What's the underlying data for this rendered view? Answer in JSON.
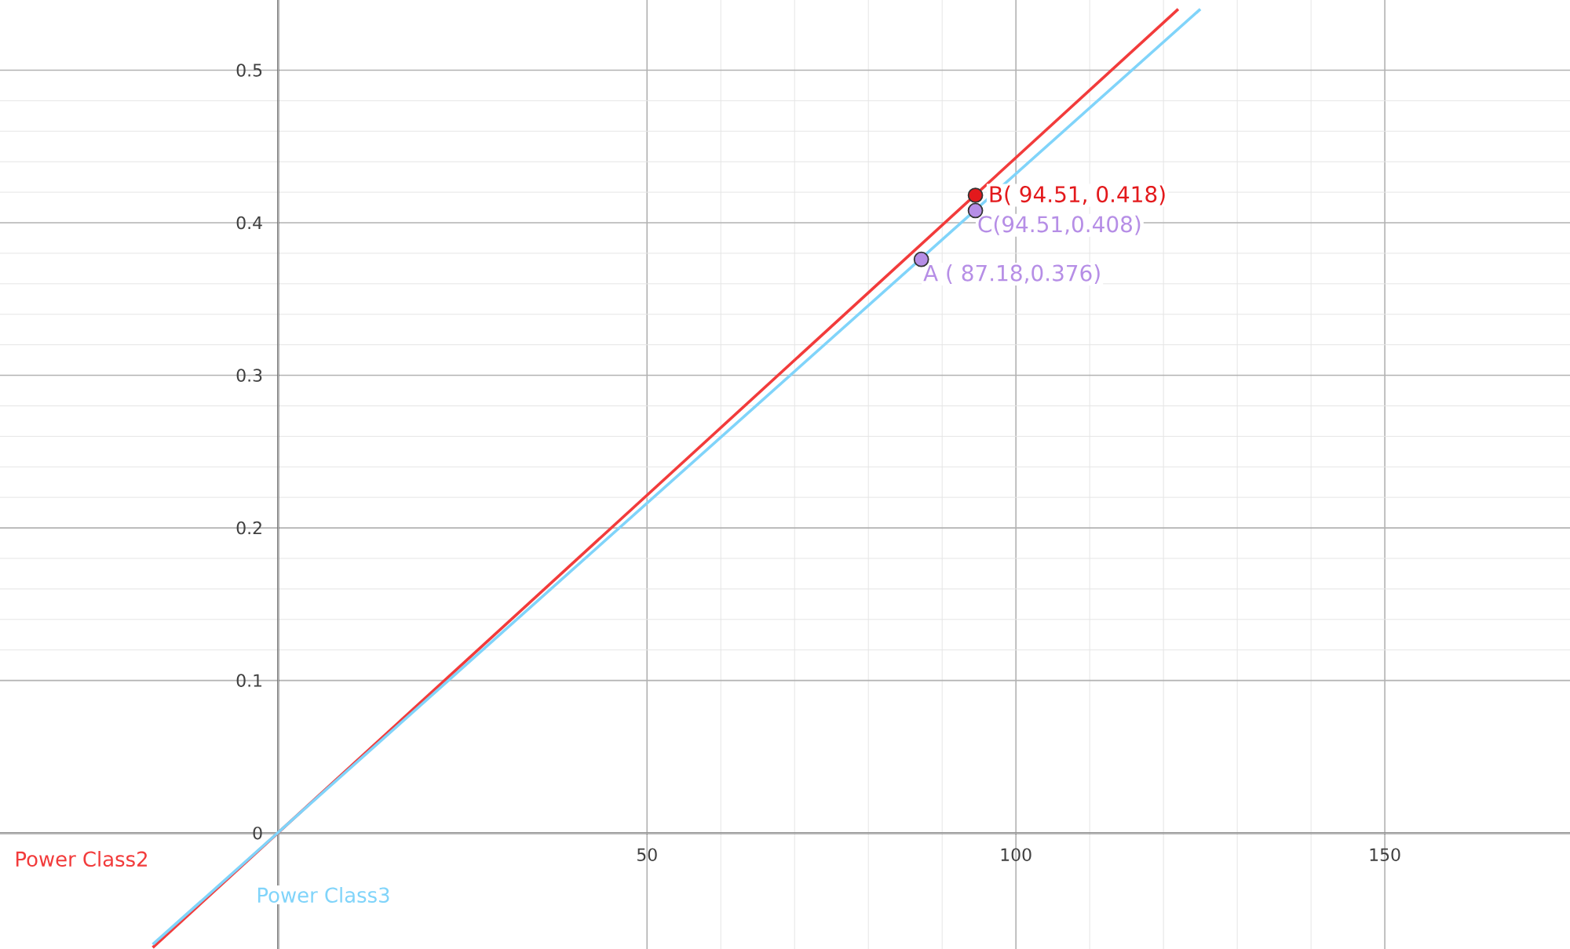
{
  "chart_data": {
    "type": "line",
    "xlim": [
      -37.7,
      175.1
    ],
    "ylim": [
      -0.076,
      0.546
    ],
    "xticks": [
      {
        "value": 0,
        "label": null
      },
      50,
      100,
      150
    ],
    "yticks": [
      0,
      0.1,
      0.2,
      0.3,
      0.4,
      0.5
    ],
    "grid": true,
    "legend": false,
    "marker": "none",
    "line_style": "solid",
    "series": [
      {
        "name": "Power Class2",
        "color": "#f23b3b",
        "x": [
          -17,
          122
        ],
        "values": [
          -0.075,
          0.54
        ]
      },
      {
        "name": "Power Class3",
        "color": "#80d4fa",
        "x": [
          -17,
          125
        ],
        "values": [
          -0.073,
          0.54
        ]
      },
      {
        "type": "scatter",
        "marker": "circle",
        "x": [
          87.18,
          94.51,
          94.51
        ],
        "values": [
          0.376,
          0.418,
          0.408
        ],
        "colors": [
          "#b68ee6",
          "#e3191c",
          "#b68ee6"
        ]
      }
    ],
    "annotations": [
      "A ( 87.18,0.376)",
      "B( 94.51, 0.418)",
      "C(94.51,0.408)"
    ]
  }
}
